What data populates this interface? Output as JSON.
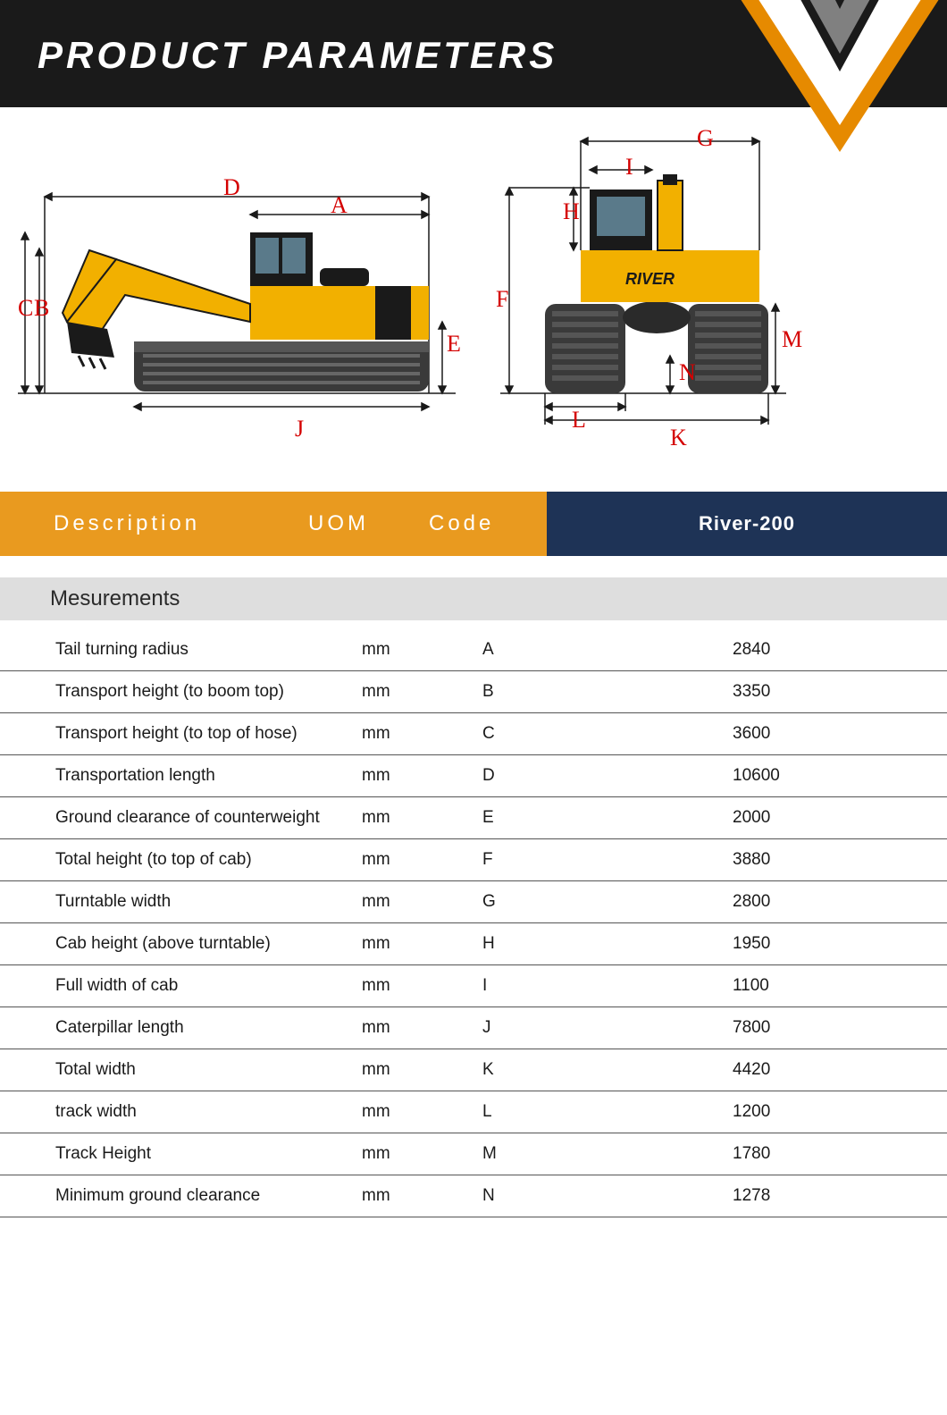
{
  "page_title": "PRODUCT PARAMETERS",
  "brand_logo_text": "RIVER",
  "header": {
    "description_label": "Description",
    "uom_label": "UOM",
    "code_label": "Code",
    "model_label": "River-200",
    "orange_color": "#e99a1f",
    "navy_color": "#1e3356"
  },
  "section_title": "Mesurements",
  "diagram": {
    "dimension_label_color": "#d40000",
    "dimension_label_font": "Times New Roman",
    "excavator_yellow": "#f2b000",
    "excavator_black": "#1a1a1a",
    "track_color": "#4a4a4a",
    "arrow_color": "#1a1a1a",
    "labels_side": [
      "A",
      "B",
      "C",
      "D",
      "E",
      "J"
    ],
    "labels_front": [
      "F",
      "G",
      "H",
      "I",
      "K",
      "L",
      "M",
      "N"
    ]
  },
  "rows": [
    {
      "desc": "Tail turning radius",
      "uom": "mm",
      "code": "A",
      "value": "2840"
    },
    {
      "desc": "Transport height (to boom top)",
      "uom": "mm",
      "code": "B",
      "value": "3350"
    },
    {
      "desc": "Transport height (to top of hose)",
      "uom": "mm",
      "code": "C",
      "value": "3600"
    },
    {
      "desc": "Transportation length",
      "uom": "mm",
      "code": "D",
      "value": "10600"
    },
    {
      "desc": "Ground clearance of counterweight",
      "uom": "mm",
      "code": "E",
      "value": "2000"
    },
    {
      "desc": "Total height (to top of cab)",
      "uom": "mm",
      "code": "F",
      "value": "3880"
    },
    {
      "desc": "Turntable width",
      "uom": "mm",
      "code": "G",
      "value": "2800"
    },
    {
      "desc": "Cab height (above turntable)",
      "uom": "mm",
      "code": "H",
      "value": "1950"
    },
    {
      "desc": "Full width of cab",
      "uom": "mm",
      "code": "I",
      "value": "1100"
    },
    {
      "desc": "Caterpillar length",
      "uom": "mm",
      "code": "J",
      "value": "7800"
    },
    {
      "desc": "Total width",
      "uom": "mm",
      "code": "K",
      "value": "4420"
    },
    {
      "desc": "track width",
      "uom": "mm",
      "code": "L",
      "value": "1200"
    },
    {
      "desc": "Track Height",
      "uom": "mm",
      "code": "M",
      "value": "1780"
    },
    {
      "desc": "Minimum ground clearance",
      "uom": "mm",
      "code": "N",
      "value": "1278"
    }
  ],
  "table_style": {
    "row_border_color": "#555555",
    "section_bg": "#dedede",
    "font_size_row": 19,
    "font_size_header": 24
  }
}
